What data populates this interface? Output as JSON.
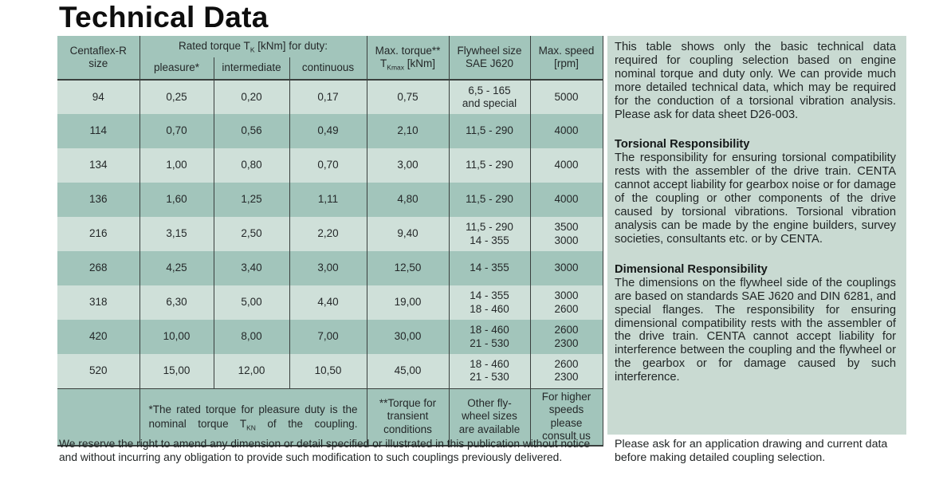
{
  "title": "Technical Data",
  "colors": {
    "dark_green": "#a2c5bb",
    "light_green": "#cfe0d9",
    "panel_green": "#c9dad2",
    "border": "#3a403e"
  },
  "table": {
    "header": {
      "col_size": [
        "Centaflex-R",
        "size"
      ],
      "rated_torque": {
        "pre": "Rated torque T",
        "sub": "K",
        "post": " [kNm] for duty:"
      },
      "duty_cols": [
        "pleasure*",
        "intermediate",
        "continuous"
      ],
      "max_torque": {
        "line1": "Max. torque**",
        "line2_pre": "T",
        "line2_sub": "Kmax",
        "line2_post": " [kNm]"
      },
      "flywheel": [
        "Flywheel size",
        "SAE J620"
      ],
      "max_speed": [
        "Max. speed",
        "[rpm]"
      ]
    },
    "rows": [
      {
        "size": "94",
        "pleasure": "0,25",
        "intermediate": "0,20",
        "continuous": "0,17",
        "max_torque": "0,75",
        "flywheel": [
          "6,5 - 165",
          "and special"
        ],
        "speed": [
          "5000"
        ]
      },
      {
        "size": "114",
        "pleasure": "0,70",
        "intermediate": "0,56",
        "continuous": "0,49",
        "max_torque": "2,10",
        "flywheel": [
          "11,5 - 290"
        ],
        "speed": [
          "4000"
        ]
      },
      {
        "size": "134",
        "pleasure": "1,00",
        "intermediate": "0,80",
        "continuous": "0,70",
        "max_torque": "3,00",
        "flywheel": [
          "11,5 - 290"
        ],
        "speed": [
          "4000"
        ]
      },
      {
        "size": "136",
        "pleasure": "1,60",
        "intermediate": "1,25",
        "continuous": "1,11",
        "max_torque": "4,80",
        "flywheel": [
          "11,5 - 290"
        ],
        "speed": [
          "4000"
        ]
      },
      {
        "size": "216",
        "pleasure": "3,15",
        "intermediate": "2,50",
        "continuous": "2,20",
        "max_torque": "9,40",
        "flywheel": [
          "11,5 - 290",
          "14 - 355"
        ],
        "speed": [
          "3500",
          "3000"
        ]
      },
      {
        "size": "268",
        "pleasure": "4,25",
        "intermediate": "3,40",
        "continuous": "3,00",
        "max_torque": "12,50",
        "flywheel": [
          "14 - 355"
        ],
        "speed": [
          "3000"
        ]
      },
      {
        "size": "318",
        "pleasure": "6,30",
        "intermediate": "5,00",
        "continuous": "4,40",
        "max_torque": "19,00",
        "flywheel": [
          "14 - 355",
          "18 - 460"
        ],
        "speed": [
          "3000",
          "2600"
        ]
      },
      {
        "size": "420",
        "pleasure": "10,00",
        "intermediate": "8,00",
        "continuous": "7,00",
        "max_torque": "30,00",
        "flywheel": [
          "18 - 460",
          "21 - 530"
        ],
        "speed": [
          "2600",
          "2300"
        ]
      },
      {
        "size": "520",
        "pleasure": "15,00",
        "intermediate": "12,00",
        "continuous": "10,50",
        "max_torque": "45,00",
        "flywheel": [
          "18 - 460",
          "21 - 530"
        ],
        "speed": [
          "2600",
          "2300"
        ]
      }
    ],
    "footer": {
      "rated_note": {
        "pre": "*The rated torque for pleasure duty is the nominal torque T",
        "sub": "KN",
        "post": " of the coupling."
      },
      "torque_note": [
        "**Torque for",
        "transient",
        "conditions"
      ],
      "flywheel_note": [
        "Other fly-",
        "wheel sizes",
        "are available"
      ],
      "speed_note": [
        "For higher",
        "speeds please",
        "consult us"
      ]
    }
  },
  "panel": {
    "intro": "This table shows only the basic technical data required for coupling selection based on engine nominal torque and duty only. We can provide much more detailed technical data, which may be required for the conduction of a torsional vibration analysis. Please ask for data sheet D26-003.",
    "torsional_heading": "Torsional Responsibility",
    "torsional_text": "The responsibility for ensuring torsional compatibility rests with the assembler of the drive train. CENTA cannot accept liability for gearbox noise or for damage of the coupling or other components of the drive caused by torsional vibrations. Torsional vibration analysis can be made by the engine builders, survey societies, consultants etc. or by CENTA.",
    "dimensional_heading": "Dimensional Responsibility",
    "dimensional_text": "The dimensions on the flywheel side of the couplings are based on standards SAE J620 and DIN 6281, and special flanges. The responsibility for ensuring dimensional compatibility rests with the assembler of the drive train. CENTA cannot accept liability for interference between the coupling and the flywheel or the gearbox or for damage caused by such interference."
  },
  "footnotes": {
    "left": "We reserve the right to amend any dimension or detail specified or illustrated in this publication without notice and without incurring any obligation to provide such modification to such couplings previously delivered.",
    "right": "Please ask for an application drawing and current data before making detailed coupling selection."
  }
}
